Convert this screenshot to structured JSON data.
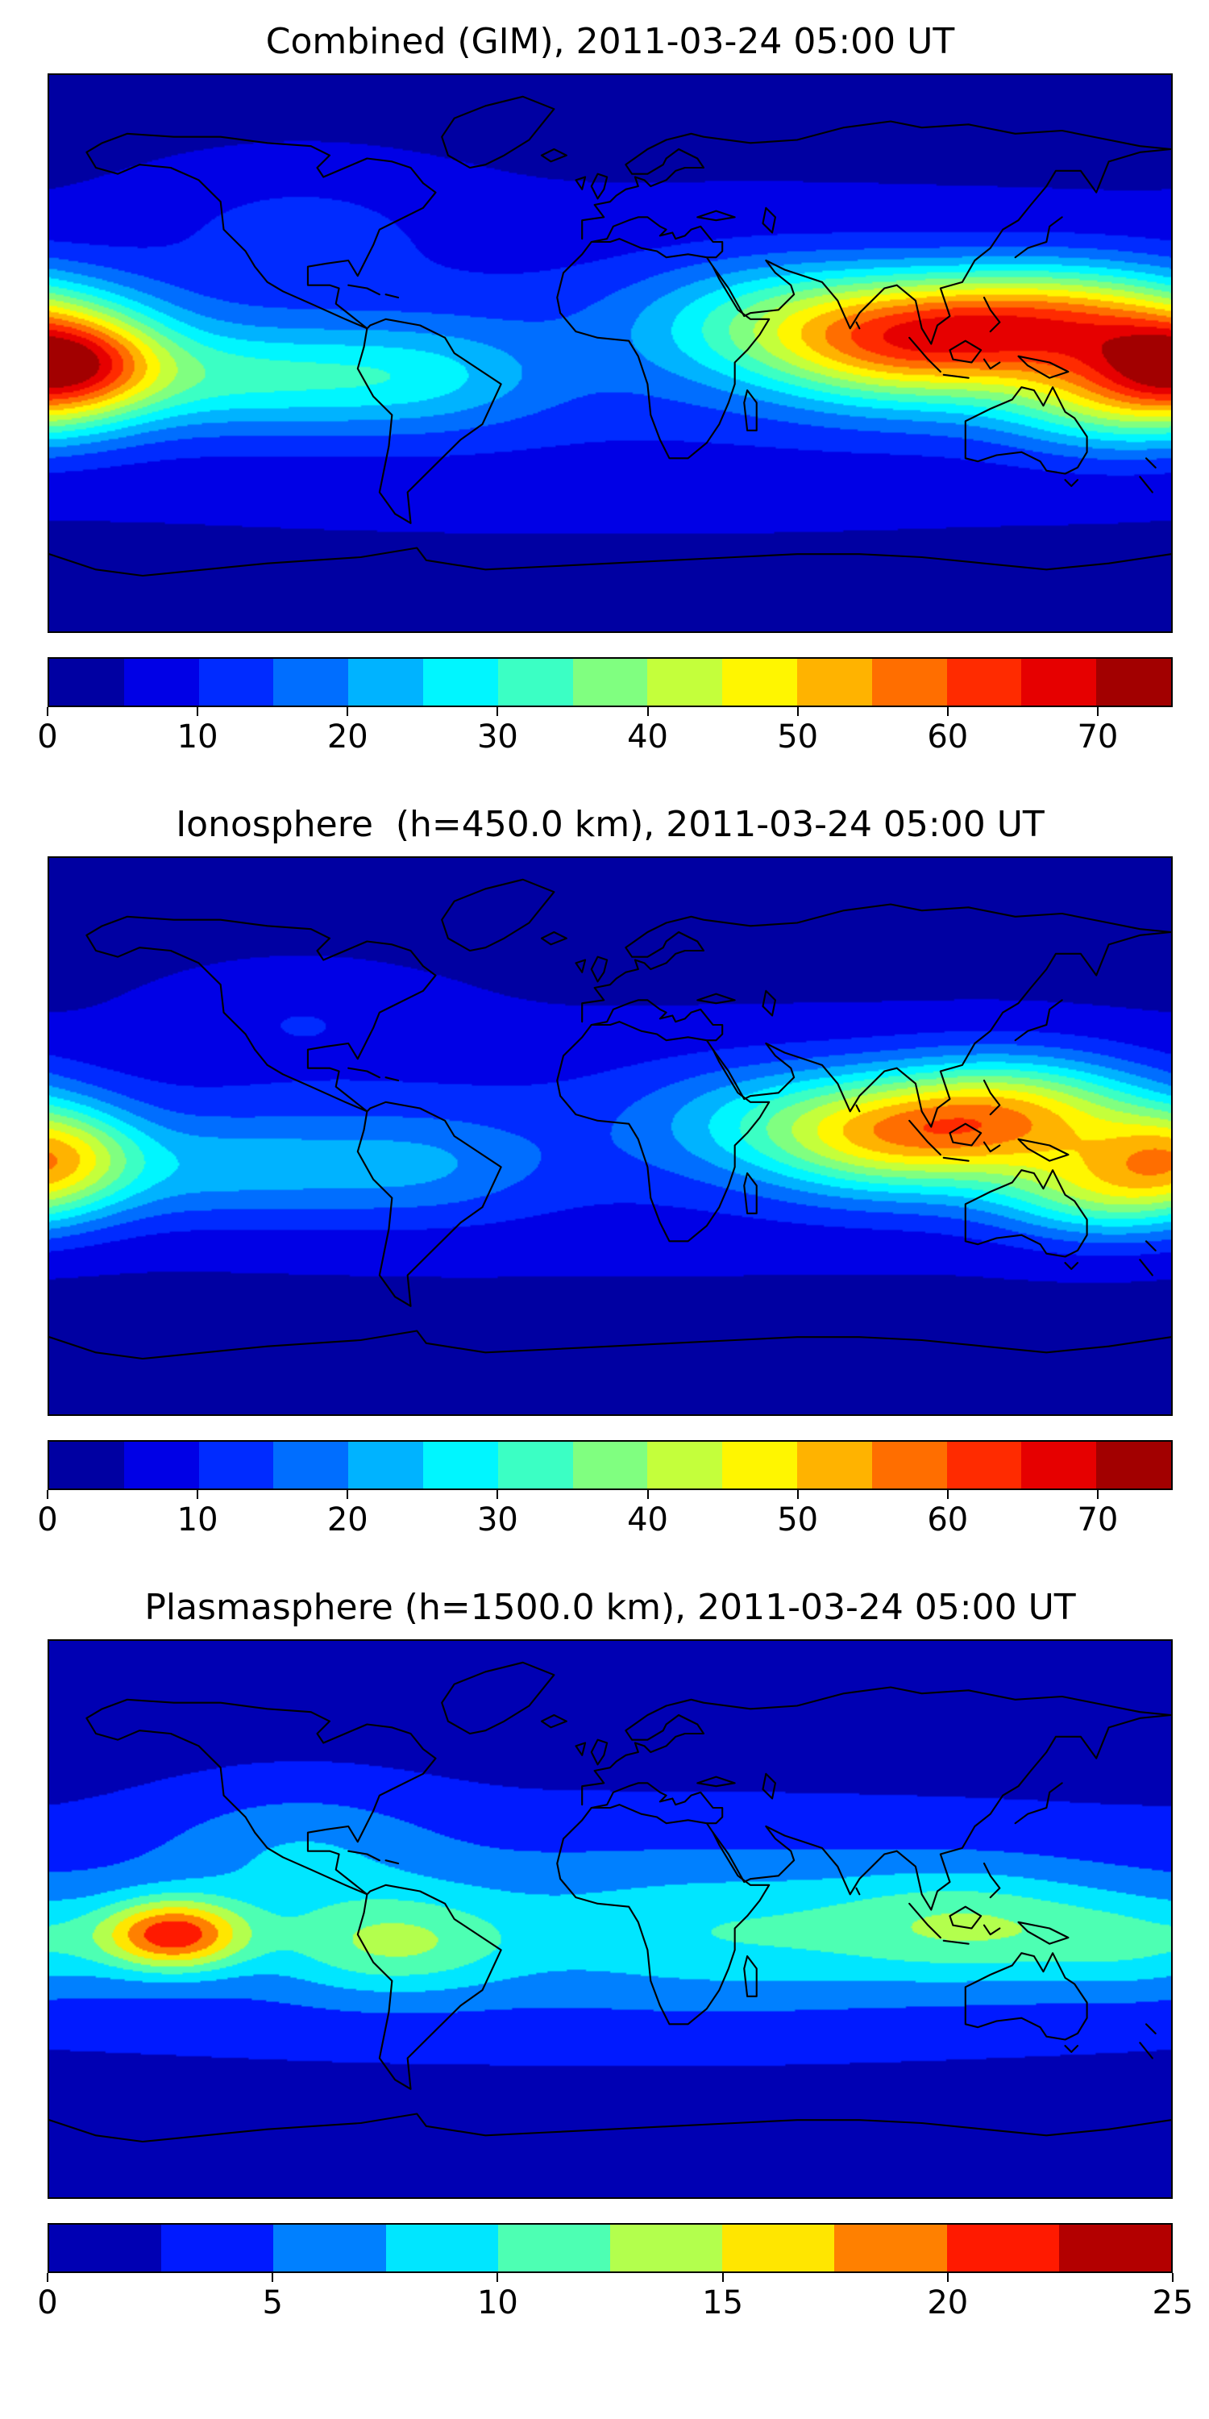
{
  "chart_data": [
    {
      "type": "heatmap",
      "subtype": "filled-contour-world-map",
      "title": "Combined (GIM), 2011-03-24 05:00 UT",
      "projection": "equirectangular",
      "lon_range": [
        -180,
        180
      ],
      "lat_range": [
        -90,
        90
      ],
      "colormap": "jet-discrete",
      "levels": {
        "min": 0,
        "max": 75,
        "step": 5
      },
      "colorbar_ticks": [
        0,
        10,
        20,
        30,
        40,
        50,
        60,
        70
      ],
      "colorbar_colors": [
        "#0000a2",
        "#0000e6",
        "#002bff",
        "#006eff",
        "#00b3ff",
        "#00f6ff",
        "#3bffc4",
        "#80ff80",
        "#c4ff3b",
        "#fff600",
        "#ffb300",
        "#ff6e00",
        "#ff2b00",
        "#e60000",
        "#a20000"
      ],
      "background_value": 4,
      "peak_summary": "max ~70 over western Pacific (~145E, 10N); secondary ~60 near dateline (~173W, 3S); low ~5 at high latitudes",
      "blobs": [
        {
          "lon": 145,
          "lat": 10,
          "sigma_lon": 38,
          "sigma_lat": 13,
          "amplitude": 44
        },
        {
          "lon": 165,
          "lat": -15,
          "sigma_lon": 28,
          "sigma_lat": 12,
          "amplitude": 28
        },
        {
          "lon": -173,
          "lat": -3,
          "sigma_lon": 20,
          "sigma_lat": 11,
          "amplitude": 36
        },
        {
          "lon": 95,
          "lat": 2,
          "sigma_lon": 30,
          "sigma_lat": 14,
          "amplitude": 30
        },
        {
          "lon": 55,
          "lat": 10,
          "sigma_lon": 33,
          "sigma_lat": 14,
          "amplitude": 20
        },
        {
          "lon": -120,
          "lat": -8,
          "sigma_lon": 35,
          "sigma_lat": 12,
          "amplitude": 18
        },
        {
          "lon": -60,
          "lat": -8,
          "sigma_lon": 28,
          "sigma_lat": 12,
          "amplitude": 12
        },
        {
          "lon": 0,
          "lat": -2,
          "sigma_lon": 185,
          "sigma_lat": 27,
          "amplitude": 9
        },
        {
          "lon": -100,
          "lat": 42,
          "sigma_lon": 32,
          "sigma_lat": 13,
          "amplitude": 6
        }
      ]
    },
    {
      "type": "heatmap",
      "subtype": "filled-contour-world-map",
      "title": "Ionosphere  (h=450.0 km), 2011-03-24 05:00 UT",
      "projection": "equirectangular",
      "lon_range": [
        -180,
        180
      ],
      "lat_range": [
        -90,
        90
      ],
      "colormap": "jet-discrete",
      "levels": {
        "min": 0,
        "max": 75,
        "step": 5
      },
      "colorbar_ticks": [
        0,
        10,
        20,
        30,
        40,
        50,
        60,
        70
      ],
      "colorbar_colors": [
        "#0000a2",
        "#0000e6",
        "#002bff",
        "#006eff",
        "#00b3ff",
        "#00f6ff",
        "#3bffc4",
        "#80ff80",
        "#c4ff3b",
        "#fff600",
        "#ffb300",
        "#ff6e00",
        "#ff2b00",
        "#e60000",
        "#a20000"
      ],
      "background_value": 3,
      "peak_summary": "max ~55 over Philippines / western Pacific (~130E, 7N); secondary ~45 near dateline (~177W, 5S); very low ~3-8 over Atlantic and high latitudes",
      "blobs": [
        {
          "lon": 130,
          "lat": 7,
          "sigma_lon": 32,
          "sigma_lat": 13,
          "amplitude": 38
        },
        {
          "lon": 160,
          "lat": -18,
          "sigma_lon": 26,
          "sigma_lat": 11,
          "amplitude": 28
        },
        {
          "lon": -177,
          "lat": -5,
          "sigma_lon": 18,
          "sigma_lat": 11,
          "amplitude": 26
        },
        {
          "lon": 90,
          "lat": -2,
          "sigma_lon": 28,
          "sigma_lat": 13,
          "amplitude": 24
        },
        {
          "lon": 55,
          "lat": 5,
          "sigma_lon": 32,
          "sigma_lat": 13,
          "amplitude": 15
        },
        {
          "lon": -125,
          "lat": -10,
          "sigma_lon": 35,
          "sigma_lat": 12,
          "amplitude": 13
        },
        {
          "lon": -60,
          "lat": -10,
          "sigma_lon": 28,
          "sigma_lat": 12,
          "amplitude": 9
        },
        {
          "lon": 0,
          "lat": -2,
          "sigma_lon": 185,
          "sigma_lat": 26,
          "amplitude": 8
        },
        {
          "lon": -100,
          "lat": 40,
          "sigma_lon": 32,
          "sigma_lat": 12,
          "amplitude": 5
        }
      ]
    },
    {
      "type": "heatmap",
      "subtype": "filled-contour-world-map",
      "title": "Plasmasphere (h=1500.0 km), 2011-03-24 05:00 UT",
      "projection": "equirectangular",
      "lon_range": [
        -180,
        180
      ],
      "lat_range": [
        -90,
        90
      ],
      "colormap": "jet-discrete",
      "levels": {
        "min": 0,
        "max": 25,
        "step": 2.5
      },
      "colorbar_ticks": [
        0,
        5,
        10,
        15,
        20,
        25
      ],
      "colorbar_colors": [
        "#0000b3",
        "#001aff",
        "#0080ff",
        "#00e6ff",
        "#4dffb3",
        "#b3ff4d",
        "#ffe600",
        "#ff8000",
        "#ff1a00",
        "#b30000"
      ],
      "background_value": 1.5,
      "peak_summary": "max ~22 red spot over eastern Pacific (~140W, 5S); ~13 over northern South America; ~12 over maritime southeast Asia; broad tropical band ~8-10; ~2 at high latitudes",
      "blobs": [
        {
          "lon": -140,
          "lat": -5,
          "sigma_lon": 16,
          "sigma_lat": 8,
          "amplitude": 15.5
        },
        {
          "lon": 0,
          "lat": -3,
          "sigma_lon": 200,
          "sigma_lat": 24,
          "amplitude": 5.5
        },
        {
          "lon": -70,
          "lat": -8,
          "sigma_lon": 26,
          "sigma_lat": 11,
          "amplitude": 6.5
        },
        {
          "lon": 115,
          "lat": -2,
          "sigma_lon": 30,
          "sigma_lat": 12,
          "amplitude": 6
        },
        {
          "lon": 170,
          "lat": -8,
          "sigma_lon": 25,
          "sigma_lat": 11,
          "amplitude": 4.5
        },
        {
          "lon": 40,
          "lat": -5,
          "sigma_lon": 40,
          "sigma_lat": 14,
          "amplitude": 3
        },
        {
          "lon": -100,
          "lat": 25,
          "sigma_lon": 30,
          "sigma_lat": 14,
          "amplitude": 3.5
        }
      ]
    }
  ]
}
